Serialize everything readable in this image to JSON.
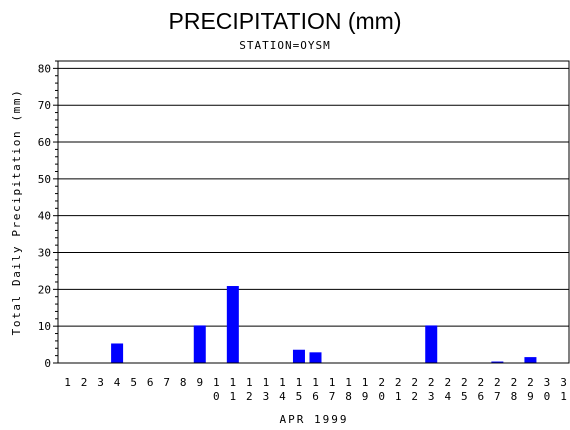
{
  "chart_data": {
    "type": "bar",
    "title": "PRECIPITATION (mm)",
    "subtitle": "STATION=OYSM",
    "xlabel": "APR 1999",
    "ylabel": "Total Daily Precipitation (mm)",
    "ylim": [
      0,
      82
    ],
    "yticks": [
      0,
      10,
      20,
      30,
      40,
      50,
      60,
      70,
      80
    ],
    "categories": [
      "1",
      "2",
      "3",
      "4",
      "5",
      "6",
      "7",
      "8",
      "9",
      "10",
      "11",
      "12",
      "13",
      "14",
      "15",
      "16",
      "17",
      "18",
      "19",
      "20",
      "21",
      "22",
      "23",
      "24",
      "25",
      "26",
      "27",
      "28",
      "29",
      "30",
      "31"
    ],
    "values": [
      0,
      0,
      0,
      5.3,
      0,
      0,
      0,
      0,
      10.2,
      0,
      20.9,
      0,
      0,
      0,
      3.6,
      2.9,
      0,
      0,
      0,
      0,
      0,
      0,
      10.2,
      0,
      0,
      0,
      0.4,
      0,
      1.6,
      0,
      0
    ],
    "bar_color": "#0000ff",
    "grid": true
  }
}
